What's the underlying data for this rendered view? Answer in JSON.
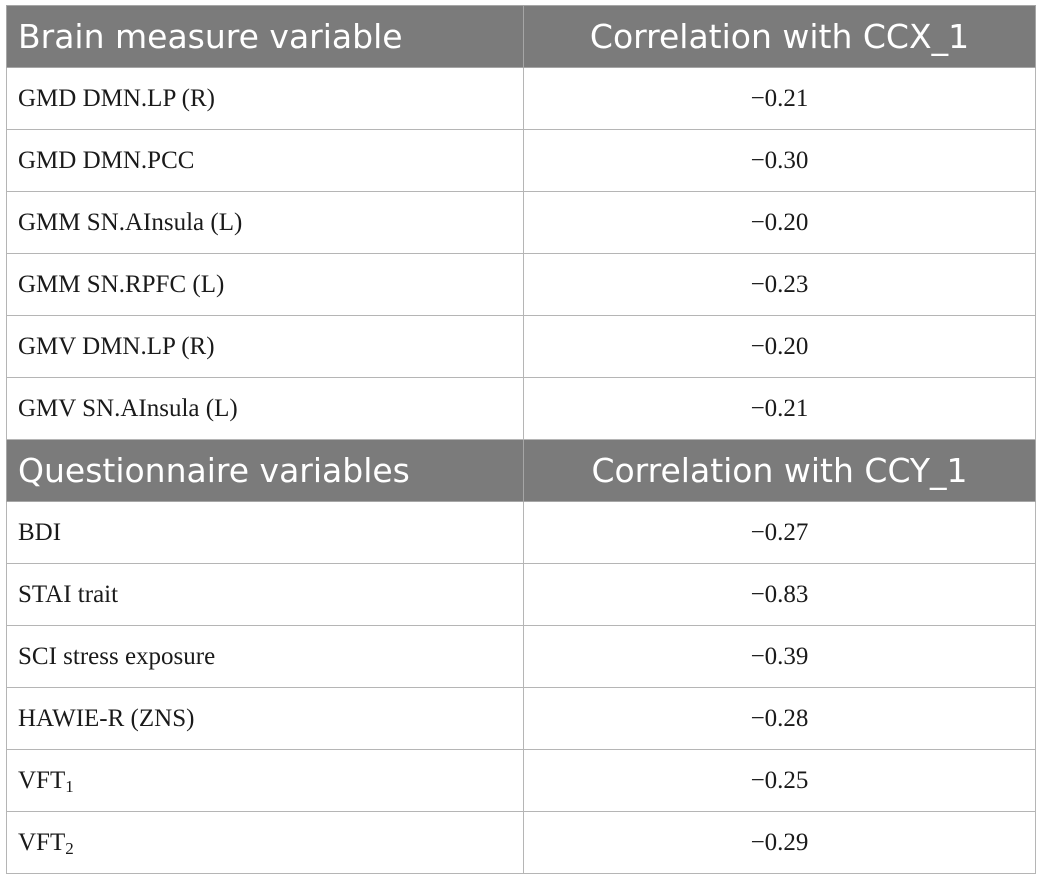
{
  "brain_section": {
    "header_variable": "Brain measure variable",
    "header_correlation": "Correlation with CCX_1",
    "rows": [
      {
        "name": "GMD DMN.LP (R)",
        "value": "−0.21"
      },
      {
        "name": "GMD DMN.PCC",
        "value": "−0.30"
      },
      {
        "name": "GMM SN.AInsula (L)",
        "value": "−0.20"
      },
      {
        "name": "GMM SN.RPFC (L)",
        "value": "−0.23"
      },
      {
        "name": "GMV DMN.LP (R)",
        "value": "−0.20"
      },
      {
        "name": "GMV SN.AInsula (L)",
        "value": "−0.21"
      }
    ]
  },
  "questionnaire_section": {
    "header_variable": "Questionnaire variables",
    "header_correlation": "Correlation with CCY_1",
    "rows": [
      {
        "name": "BDI",
        "value": "−0.27"
      },
      {
        "name": "STAI trait",
        "value": "−0.83"
      },
      {
        "name": "SCI stress exposure",
        "value": "−0.39"
      },
      {
        "name": "HAWIE-R (ZNS)",
        "value": "−0.28"
      },
      {
        "name": "VFT",
        "subscript": "1",
        "value": "−0.25"
      },
      {
        "name": "VFT",
        "subscript": "2",
        "value": "−0.29"
      }
    ]
  },
  "colors": {
    "header_background": "#7b7b7b",
    "header_text": "#ffffff",
    "grid_line": "#b5b5b5"
  }
}
